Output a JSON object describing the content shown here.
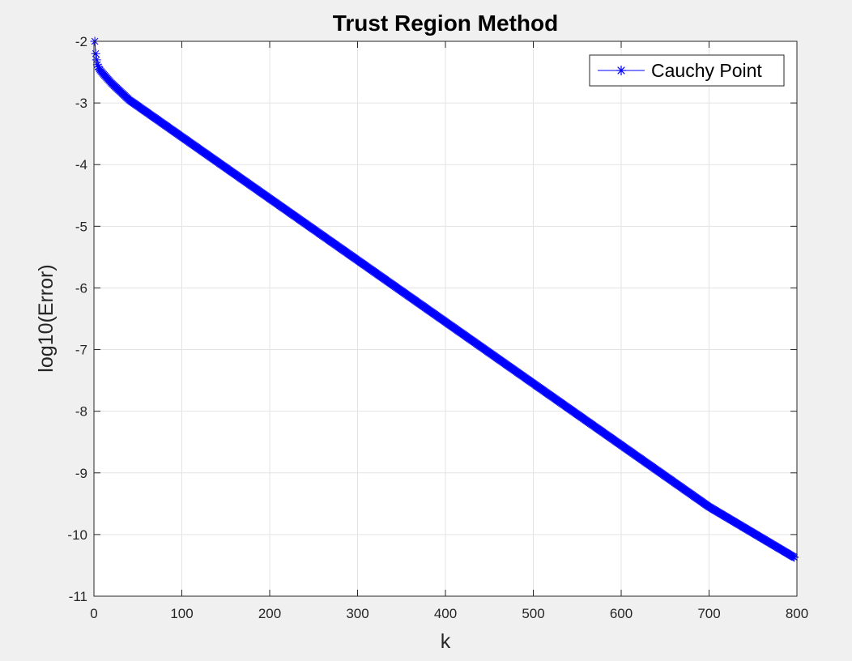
{
  "chart_data": {
    "type": "line",
    "title": "Trust Region Method",
    "xlabel": "k",
    "ylabel": "log10(Error)",
    "xlim": [
      0,
      800
    ],
    "ylim": [
      -11,
      -2
    ],
    "xticks": [
      "0",
      "100",
      "200",
      "300",
      "400",
      "500",
      "600",
      "700",
      "800"
    ],
    "yticks": [
      "-11",
      "-10",
      "-9",
      "-8",
      "-7",
      "-6",
      "-5",
      "-4",
      "-3",
      "-2"
    ],
    "grid": true,
    "legend_position": "top-right",
    "series": [
      {
        "name": "Cauchy Point",
        "color": "#0000ff",
        "marker": "asterisk",
        "x_start": 1,
        "x_end": 797,
        "x_step": 1,
        "y_first": -2.0,
        "y_at_x": [
          [
            1,
            -2.0
          ],
          [
            2,
            -2.2
          ],
          [
            3,
            -2.3
          ],
          [
            4,
            -2.38
          ],
          [
            6,
            -2.45
          ],
          [
            10,
            -2.52
          ],
          [
            20,
            -2.68
          ],
          [
            40,
            -2.95
          ],
          [
            60,
            -3.15
          ],
          [
            100,
            -3.55
          ],
          [
            200,
            -4.55
          ],
          [
            300,
            -5.55
          ],
          [
            400,
            -6.55
          ],
          [
            500,
            -7.55
          ],
          [
            600,
            -8.55
          ],
          [
            700,
            -9.55
          ],
          [
            797,
            -10.37
          ]
        ]
      }
    ]
  }
}
